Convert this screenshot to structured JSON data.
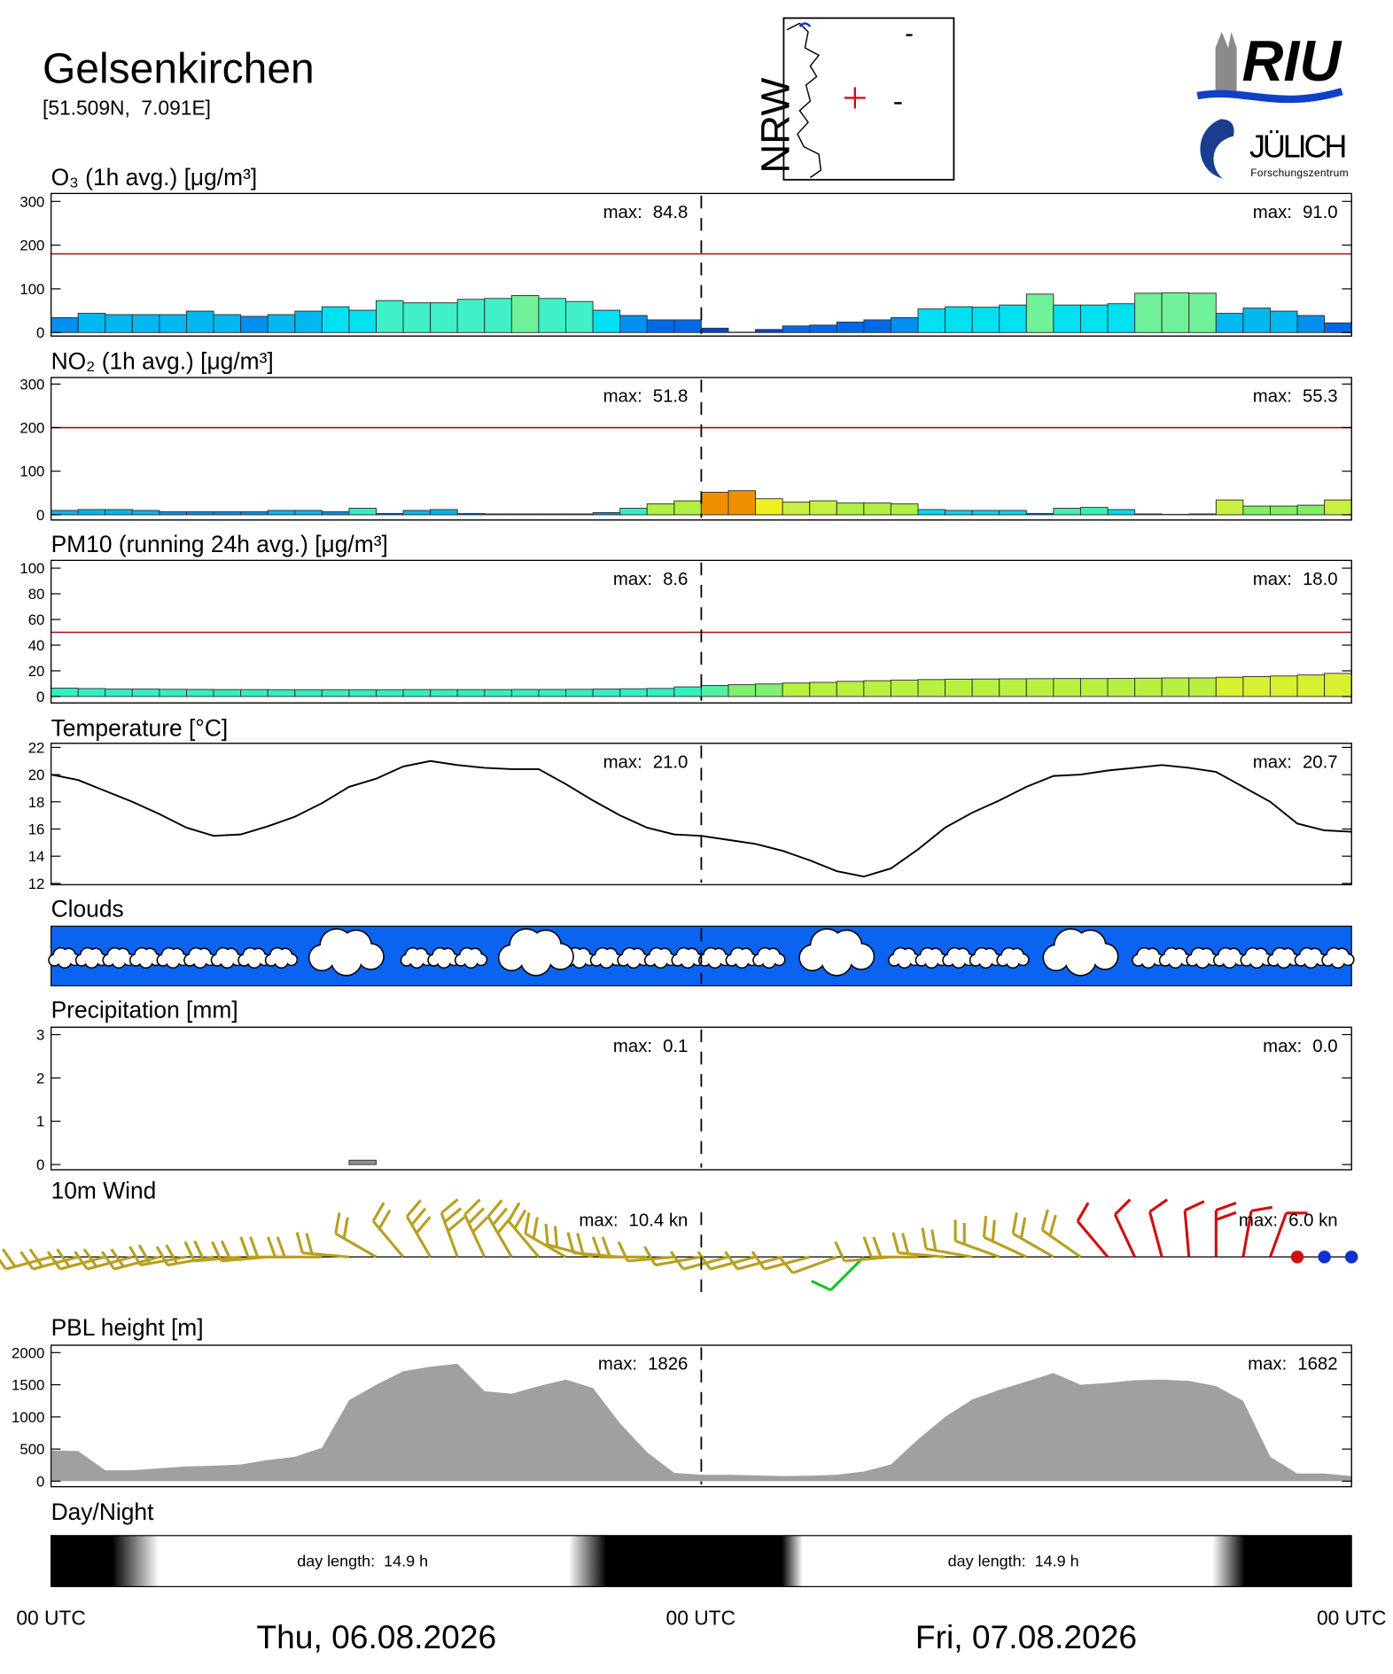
{
  "header": {
    "title": "Gelsenkirchen",
    "coordinates": "[51.509N,  7.091E]"
  },
  "map": {
    "label": "NRW"
  },
  "logos": {
    "riu": "RIU",
    "juelich": "JÜLICH",
    "juelich_subtitle": "Forschungszentrum"
  },
  "time_axis": {
    "labels": [
      "00 UTC",
      "00 UTC",
      "00 UTC"
    ],
    "dates": [
      "Thu, 06.08.2026",
      "Fri, 07.08.2026"
    ]
  },
  "chart_data": [
    {
      "type": "bar",
      "title": "O₃ (1h avg.) [μg/m³]",
      "values": [
        34,
        44,
        41,
        41,
        41,
        49,
        41,
        37,
        41,
        49,
        59,
        51,
        73,
        68,
        68,
        76,
        78,
        84.8,
        78,
        71,
        51,
        39,
        29,
        29,
        10,
        1,
        7,
        15,
        17,
        24,
        29,
        34,
        54,
        59,
        58,
        63,
        88,
        63,
        63,
        66,
        90,
        91.0,
        90,
        44,
        56,
        49,
        39,
        22
      ],
      "colors": [
        "#0090f0",
        "#00b8f0",
        "#00b8f0",
        "#00b8f0",
        "#00b8f0",
        "#00b8f0",
        "#00b8f0",
        "#0090f0",
        "#00b8f0",
        "#00b8f0",
        "#00e0f0",
        "#00e0f0",
        "#40f0c8",
        "#40f0c8",
        "#40f0c8",
        "#40f0c8",
        "#40f0c8",
        "#70f098",
        "#40f0c8",
        "#40f0c8",
        "#00e0f0",
        "#0090f0",
        "#0068e8",
        "#0068e8",
        "#0040d8",
        "#0040d8",
        "#0040d8",
        "#0068e8",
        "#0068e8",
        "#0068e8",
        "#0068e8",
        "#0090f0",
        "#00e0f0",
        "#00e0f0",
        "#00e0f0",
        "#00e0f0",
        "#70f098",
        "#00e0f0",
        "#00e0f0",
        "#00e0f0",
        "#70f098",
        "#70f098",
        "#70f098",
        "#00b8f0",
        "#00b8f0",
        "#00b8f0",
        "#0090f0",
        "#0068e8"
      ],
      "ylim": [
        -8,
        318
      ],
      "yticks": [
        0,
        100,
        200,
        300
      ],
      "threshold": 180,
      "threshold_color": "#a01010",
      "max_prefix": "max:",
      "maxima": [
        {
          "value": 84.8,
          "label": "84.8"
        },
        {
          "value": 91.0,
          "label": "91.0"
        }
      ]
    },
    {
      "type": "bar",
      "title": "NO₂ (1h avg.) [μg/m³]",
      "values": [
        10,
        12,
        12,
        10,
        7,
        7,
        7,
        7,
        10,
        10,
        7,
        15,
        3,
        10,
        12,
        3,
        2,
        2,
        2,
        2,
        5,
        15,
        25,
        32,
        51.8,
        55.3,
        37,
        29,
        32,
        27,
        27,
        25,
        12,
        10,
        10,
        10,
        3,
        15,
        17,
        12,
        2,
        1,
        2,
        34,
        20,
        20,
        22,
        34
      ],
      "colors": [
        "#00b8f0",
        "#00b8f0",
        "#00b8f0",
        "#00b8f0",
        "#0090f0",
        "#0090f0",
        "#0090f0",
        "#0090f0",
        "#00b8f0",
        "#00b8f0",
        "#0090f0",
        "#30f0c8",
        "#0068e8",
        "#00b8f0",
        "#00b8f0",
        "#0068e8",
        "#0068e8",
        "#0068e8",
        "#0068e8",
        "#0068e8",
        "#0090f0",
        "#30f0c8",
        "#b0f040",
        "#b0f040",
        "#f09000",
        "#f09000",
        "#f0f020",
        "#c8f040",
        "#c8f040",
        "#b0f040",
        "#b0f040",
        "#b0f040",
        "#00d8f0",
        "#00d8f0",
        "#00d8f0",
        "#00d8f0",
        "#0068e8",
        "#40f0b0",
        "#40f0b0",
        "#00d8f0",
        "#0068e8",
        "#0068e8",
        "#0068e8",
        "#c8f040",
        "#80f060",
        "#80f060",
        "#80f060",
        "#c8f040"
      ],
      "ylim": [
        -12,
        315
      ],
      "yticks": [
        0,
        100,
        200,
        300
      ],
      "threshold": 200,
      "threshold_color": "#a01010",
      "max_prefix": "max:",
      "maxima": [
        {
          "value": 51.8,
          "label": "51.8"
        },
        {
          "value": 55.3,
          "label": "55.3"
        }
      ]
    },
    {
      "type": "bar",
      "title": "PM10 (running 24h avg.) [μg/m³]",
      "values": [
        6.5,
        6.2,
        5.8,
        5.8,
        5.6,
        5.5,
        5.4,
        5.4,
        5.3,
        5.3,
        5.3,
        5.3,
        5.3,
        5.4,
        5.4,
        5.4,
        5.4,
        5.5,
        5.5,
        5.6,
        5.8,
        6.0,
        6.3,
        7.5,
        8.6,
        9.2,
        9.8,
        10.5,
        11.0,
        11.8,
        12.3,
        12.8,
        13.2,
        13.5,
        13.6,
        13.8,
        13.9,
        14.0,
        14.0,
        14.1,
        14.3,
        14.5,
        14.5,
        15.0,
        15.5,
        16.0,
        16.8,
        18.0
      ],
      "colors": [
        "#30f0c0",
        "#30f0c0",
        "#30f0c0",
        "#30f0c0",
        "#30f0c0",
        "#30f0c0",
        "#30f0c0",
        "#30f0c0",
        "#30f0c0",
        "#30f0c0",
        "#30f0c0",
        "#30f0c0",
        "#30f0c0",
        "#30f0c0",
        "#30f0c0",
        "#30f0c0",
        "#30f0c0",
        "#30f0c0",
        "#30f0c0",
        "#30f0c0",
        "#30f0c0",
        "#30f0c0",
        "#30f0c0",
        "#30f0c0",
        "#50f0a0",
        "#80f070",
        "#80f070",
        "#b8f040",
        "#b8f040",
        "#b8f040",
        "#b8f040",
        "#b8f040",
        "#b8f040",
        "#b8f040",
        "#b8f040",
        "#b8f040",
        "#b8f040",
        "#b8f040",
        "#b8f040",
        "#b8f040",
        "#b8f040",
        "#b8f040",
        "#b8f040",
        "#d8f030",
        "#d8f030",
        "#d8f030",
        "#d8f030",
        "#d8f030"
      ],
      "ylim": [
        -5,
        106
      ],
      "yticks": [
        0,
        20,
        40,
        60,
        80,
        100
      ],
      "threshold": 50,
      "threshold_color": "#a01010",
      "max_prefix": "max:",
      "maxima": [
        {
          "value": 8.6,
          "label": "8.6"
        },
        {
          "value": 18.0,
          "label": "18.0"
        }
      ]
    },
    {
      "type": "line",
      "title": "Temperature [°C]",
      "color": "#000000",
      "values": [
        20.0,
        19.6,
        18.8,
        18.0,
        17.1,
        16.1,
        15.5,
        15.6,
        16.2,
        16.9,
        17.9,
        19.1,
        19.7,
        20.6,
        21.0,
        20.7,
        20.5,
        20.4,
        20.4,
        19.3,
        18.1,
        17.0,
        16.1,
        15.6,
        15.5,
        15.2,
        14.9,
        14.4,
        13.7,
        12.9,
        12.5,
        13.1,
        14.5,
        16.1,
        17.2,
        18.1,
        19.1,
        19.9,
        20.0,
        20.3,
        20.5,
        20.7,
        20.5,
        20.2,
        19.1,
        18.0,
        16.4,
        15.9,
        15.8
      ],
      "ylim": [
        11.9,
        22.3
      ],
      "yticks": [
        12,
        14,
        16,
        18,
        20,
        22
      ],
      "max_prefix": "max:",
      "maxima": [
        {
          "value": 21.0,
          "label": "21.0"
        },
        {
          "value": 20.7,
          "label": "20.7"
        }
      ]
    },
    {
      "type": "clouds",
      "title": "Clouds",
      "color": "#0a64f0"
    },
    {
      "type": "bar",
      "title": "Precipitation [mm]",
      "color": "#909090",
      "values": [
        0,
        0,
        0,
        0,
        0,
        0,
        0,
        0,
        0,
        0,
        0,
        0.1,
        0,
        0,
        0,
        0,
        0,
        0,
        0,
        0,
        0,
        0,
        0,
        0,
        0,
        0,
        0,
        0,
        0,
        0,
        0,
        0,
        0,
        0,
        0,
        0,
        0,
        0,
        0,
        0,
        0,
        0,
        0,
        0,
        0,
        0,
        0,
        0
      ],
      "ylim": [
        -0.12,
        3.17
      ],
      "yticks": [
        0,
        1,
        2,
        3
      ],
      "max_prefix": "max:",
      "maxima": [
        {
          "value": 0.1,
          "label": "0.1"
        },
        {
          "value": 0.0,
          "label": "0.0"
        }
      ]
    },
    {
      "type": "wind",
      "title": "10m Wind",
      "speed": [
        6,
        6,
        6,
        6,
        6,
        6,
        6,
        6,
        7,
        7,
        7,
        8,
        9,
        9,
        10,
        10,
        10.4,
        10,
        9,
        8,
        7,
        6,
        6,
        5,
        5,
        5,
        5,
        5,
        5,
        5,
        5,
        5,
        6,
        6,
        6,
        6,
        6,
        6,
        6,
        5,
        5,
        5,
        5,
        6.0,
        5,
        5,
        0,
        0,
        0
      ],
      "direction": [
        255,
        255,
        255,
        255,
        255,
        260,
        260,
        265,
        265,
        270,
        270,
        275,
        300,
        320,
        330,
        340,
        335,
        330,
        320,
        300,
        285,
        275,
        270,
        265,
        260,
        255,
        255,
        255,
        255,
        250,
        225,
        265,
        270,
        275,
        280,
        290,
        295,
        300,
        305,
        320,
        335,
        345,
        355,
        0,
        10,
        20,
        null,
        null,
        null
      ],
      "colors": [
        "#b8a020",
        "#b8a020",
        "#b8a020",
        "#b8a020",
        "#b8a020",
        "#b8a020",
        "#b8a020",
        "#b8a020",
        "#b8a020",
        "#b8a020",
        "#b8a020",
        "#b8a020",
        "#b8a020",
        "#b8a020",
        "#b8a020",
        "#b8a020",
        "#b8a020",
        "#b8a020",
        "#b8a020",
        "#b8a020",
        "#b8a020",
        "#b8a020",
        "#b8a020",
        "#b8a020",
        "#b8a020",
        "#b8a020",
        "#b8a020",
        "#b8a020",
        "#b8a020",
        "#b8a020",
        "#20c030",
        "#b8a020",
        "#b8a020",
        "#b8a020",
        "#b8a020",
        "#b8a020",
        "#b8a020",
        "#b8a020",
        "#b8a020",
        "#d01010",
        "#d01010",
        "#d01010",
        "#d01010",
        "#d01010",
        "#d01010",
        "#d01010",
        "#d01010",
        "#1030d0",
        "#1030d0"
      ],
      "max_prefix": "max:",
      "maxima": [
        {
          "value": 10.4,
          "label": "10.4 kn"
        },
        {
          "value": 6.0,
          "label": "6.0 kn"
        }
      ]
    },
    {
      "type": "area",
      "title": "PBL height [m]",
      "color": "#a0a0a0",
      "values": [
        480,
        470,
        170,
        170,
        200,
        230,
        240,
        260,
        330,
        380,
        520,
        1260,
        1500,
        1710,
        1780,
        1826,
        1400,
        1360,
        1480,
        1580,
        1450,
        900,
        450,
        130,
        100,
        100,
        90,
        80,
        85,
        100,
        150,
        260,
        650,
        1000,
        1270,
        1420,
        1550,
        1682,
        1500,
        1530,
        1570,
        1580,
        1560,
        1480,
        1250,
        380,
        120,
        120,
        80
      ],
      "ylim": [
        -85,
        2115
      ],
      "yticks": [
        0,
        500,
        1000,
        1500,
        2000
      ],
      "max_prefix": "max:",
      "maxima": [
        {
          "value": 1826,
          "label": "1826"
        },
        {
          "value": 1682,
          "label": "1682"
        }
      ]
    },
    {
      "type": "daynight",
      "title": "Day/Night",
      "day_length": [
        {
          "value": 14.9,
          "label": "day length:  14.9 h"
        },
        {
          "value": 14.9,
          "label": "day length:  14.9 h"
        }
      ]
    }
  ]
}
